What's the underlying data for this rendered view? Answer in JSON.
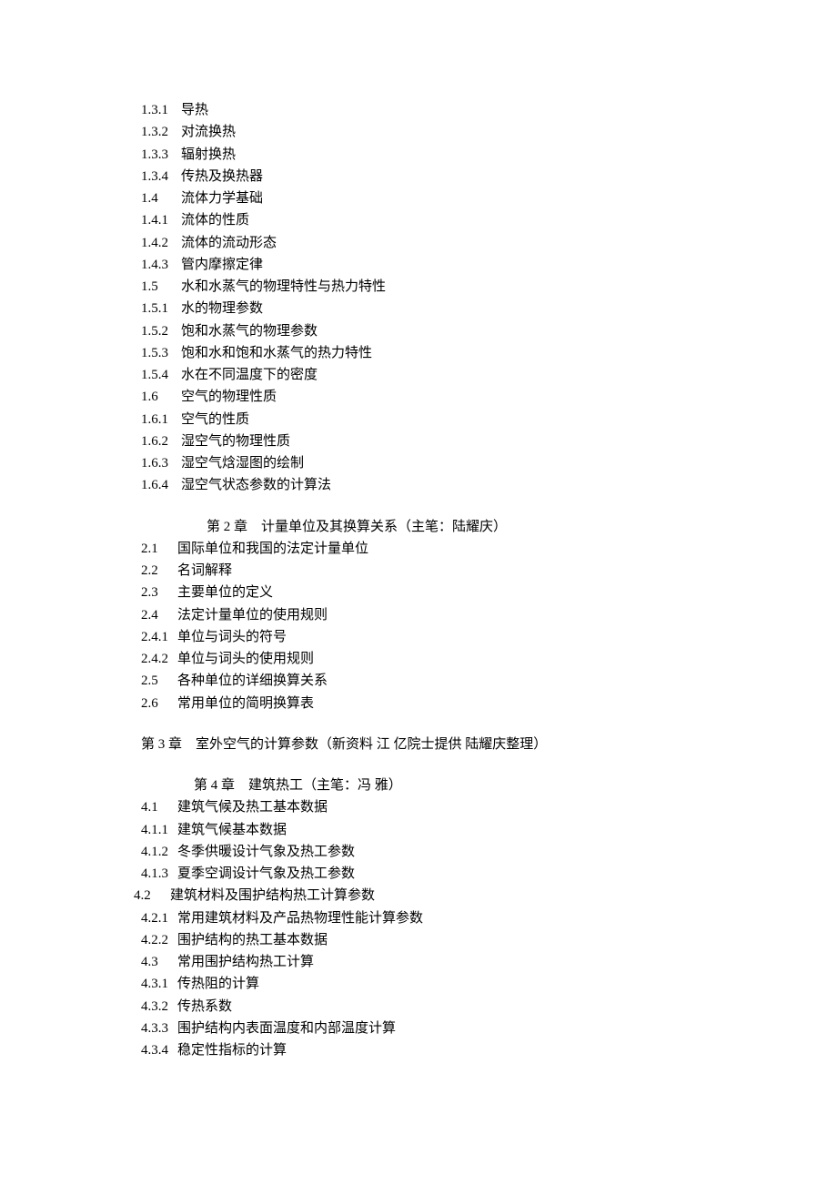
{
  "colors": {
    "text": "#000000",
    "background": "#ffffff"
  },
  "typography": {
    "font_family": "SimSun",
    "font_size_pt": 11,
    "line_height": 1.55
  },
  "sections": {
    "group1": [
      {
        "num": "1.3.1",
        "label": "导热"
      },
      {
        "num": "1.3.2",
        "label": "对流换热"
      },
      {
        "num": "1.3.3",
        "label": "辐射换热"
      },
      {
        "num": "1.3.4",
        "label": "传热及换热器"
      },
      {
        "num": "1.4",
        "label": "流体力学基础"
      },
      {
        "num": "1.4.1",
        "label": "流体的性质"
      },
      {
        "num": "1.4.2",
        "label": "流体的流动形态"
      },
      {
        "num": "1.4.3",
        "label": "管内摩擦定律"
      },
      {
        "num": "1.5",
        "label": "水和水蒸气的物理特性与热力特性"
      },
      {
        "num": "1.5.1",
        "label": "水的物理参数"
      },
      {
        "num": "1.5.2",
        "label": "饱和水蒸气的物理参数"
      },
      {
        "num": "1.5.3",
        "label": "饱和水和饱和水蒸气的热力特性"
      },
      {
        "num": "1.5.4",
        "label": "水在不同温度下的密度"
      },
      {
        "num": "1.6",
        "label": "空气的物理性质"
      },
      {
        "num": "1.6.1",
        "label": "空气的性质"
      },
      {
        "num": "1.6.2",
        "label": "湿空气的物理性质"
      },
      {
        "num": "1.6.3",
        "label": "湿空气焓湿图的绘制"
      },
      {
        "num": "1.6.4",
        "label": "湿空气状态参数的计算法"
      }
    ],
    "chapter2_title": "第 2 章　计量单位及其换算关系（主笔：陆耀庆）",
    "group2": [
      {
        "num": "2.1",
        "label": "国际单位和我国的法定计量单位"
      },
      {
        "num": "2.2",
        "label": "名词解释"
      },
      {
        "num": "2.3",
        "label": "主要单位的定义"
      },
      {
        "num": "2.4",
        "label": "法定计量单位的使用规则"
      },
      {
        "num": "2.4.1",
        "label": "单位与词头的符号"
      },
      {
        "num": "2.4.2",
        "label": "单位与词头的使用规则"
      },
      {
        "num": "2.5",
        "label": "各种单位的详细换算关系"
      },
      {
        "num": "2.6",
        "label": "常用单位的简明换算表"
      }
    ],
    "chapter3_title": "第 3 章　室外空气的计算参数（新资料 江 亿院士提供 陆耀庆整理）",
    "chapter4_title": "第 4 章　建筑热工（主笔：冯 雅）",
    "group4": [
      {
        "num": "4.1",
        "label": "建筑气候及热工基本数据"
      },
      {
        "num": "4.1.1",
        "label": "建筑气候基本数据"
      },
      {
        "num": "4.1.2",
        "label": "冬季供暖设计气象及热工参数"
      },
      {
        "num": "4.1.3",
        "label": "夏季空调设计气象及热工参数"
      },
      {
        "num": "4.2",
        "label": "建筑材料及围护结构热工计算参数",
        "outdent": true
      },
      {
        "num": "4.2.1",
        "label": "常用建筑材料及产品热物理性能计算参数"
      },
      {
        "num": "4.2.2",
        "label": "围护结构的热工基本数据"
      },
      {
        "num": "4.3",
        "label": "常用围护结构热工计算"
      },
      {
        "num": "4.3.1",
        "label": "传热阻的计算"
      },
      {
        "num": "4.3.2",
        "label": "传热系数"
      },
      {
        "num": "4.3.3",
        "label": "围护结构内表面温度和内部温度计算"
      },
      {
        "num": "4.3.4",
        "label": "稳定性指标的计算"
      }
    ]
  }
}
